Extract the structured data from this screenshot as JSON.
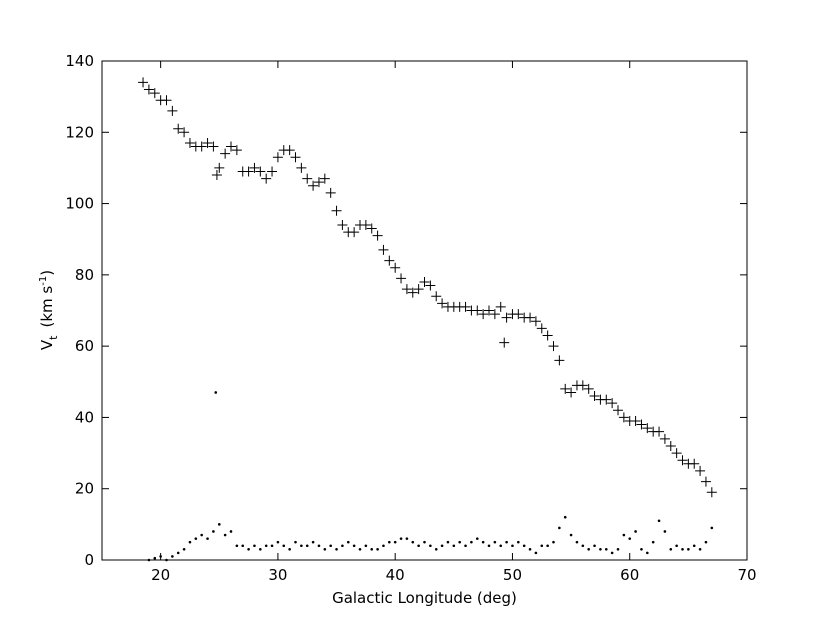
{
  "chart_data": {
    "type": "scatter",
    "xlabel": "Galactic Longitude (deg)",
    "ylabel": {
      "main": "V",
      "sub": "t",
      "unit": "(km s",
      "sup": "-1",
      "close": ")"
    },
    "xlim": [
      15,
      70
    ],
    "xticks": [
      20,
      30,
      40,
      50,
      60,
      70
    ],
    "ylim": [
      0,
      140
    ],
    "yticks": [
      0,
      20,
      40,
      60,
      80,
      100,
      120,
      140
    ],
    "series": [
      {
        "marker": "plus",
        "color": "#000000",
        "x": [
          18.5,
          19,
          19.5,
          20,
          20.5,
          21,
          21.5,
          22,
          22.5,
          23,
          23.5,
          24,
          24.5,
          25,
          25.5,
          26,
          26.5,
          27,
          27.5,
          28,
          28.5,
          29,
          29.5,
          30,
          30.5,
          31,
          31.5,
          32,
          32.5,
          33,
          33.5,
          34,
          34.5,
          35,
          35.5,
          36,
          36.5,
          37,
          37.5,
          38,
          38.5,
          39,
          39.5,
          40,
          40.5,
          41,
          41.5,
          42,
          42.5,
          43,
          43.5,
          44,
          44.5,
          45,
          45.5,
          46,
          46.5,
          47,
          47.5,
          48,
          48.5,
          49,
          49.5,
          50,
          50.5,
          51,
          51.5,
          52,
          52.5,
          53,
          53.5,
          54,
          54.5,
          55,
          55.5,
          56,
          56.5,
          57,
          57.5,
          58,
          58.5,
          59,
          59.5,
          60,
          60.5,
          61,
          61.5,
          62,
          62.5,
          63,
          63.5,
          64,
          64.5,
          65,
          65.5,
          66,
          66.5,
          67,
          49.3,
          24.8
        ],
        "values": [
          134,
          132,
          131,
          129,
          129,
          126,
          121,
          120,
          117,
          116,
          116,
          117,
          116,
          110,
          114,
          116,
          115,
          109,
          109,
          110,
          109,
          107,
          109,
          113,
          115,
          115,
          113,
          110,
          107,
          105,
          106,
          107,
          103,
          98,
          94,
          92,
          92,
          94,
          94,
          93,
          91,
          87,
          84,
          82,
          79,
          76,
          75,
          76,
          78,
          77,
          74,
          72,
          71,
          71,
          71,
          71,
          70,
          70,
          69,
          70,
          69,
          71,
          68,
          69,
          69,
          68,
          68,
          67,
          65,
          63,
          60,
          56,
          48,
          47,
          49,
          49,
          48,
          46,
          45,
          45,
          44,
          42,
          40,
          39,
          39,
          38,
          37,
          36,
          36,
          34,
          32,
          30,
          28,
          27,
          27,
          25,
          22,
          19,
          61,
          108
        ]
      },
      {
        "marker": "dot",
        "color": "#000000",
        "x": [
          19,
          19.5,
          20,
          20.5,
          21,
          21.5,
          22,
          22.5,
          23,
          23.5,
          24,
          24.5,
          25,
          25.5,
          26,
          26.5,
          27,
          27.5,
          28,
          28.5,
          29,
          29.5,
          30,
          30.5,
          31,
          31.5,
          32,
          32.5,
          33,
          33.5,
          34,
          34.5,
          35,
          35.5,
          36,
          36.5,
          37,
          37.5,
          38,
          38.5,
          39,
          39.5,
          40,
          40.5,
          41,
          41.5,
          42,
          42.5,
          43,
          43.5,
          44,
          44.5,
          45,
          45.5,
          46,
          46.5,
          47,
          47.5,
          48,
          48.5,
          49,
          49.5,
          50,
          50.5,
          51,
          51.5,
          52,
          52.5,
          53,
          53.5,
          54,
          54.5,
          55,
          55.5,
          56,
          56.5,
          57,
          57.5,
          58,
          58.5,
          59,
          59.5,
          60,
          60.5,
          61,
          61.5,
          62,
          62.5,
          63,
          63.5,
          64,
          64.5,
          65,
          65.5,
          66,
          66.5,
          67,
          24.7
        ],
        "values": [
          0,
          0.5,
          1,
          0,
          1,
          2,
          3,
          5,
          6,
          7,
          6,
          8,
          10,
          7,
          8,
          4,
          4,
          3,
          4,
          3,
          4,
          4,
          5,
          4,
          3,
          5,
          4,
          4,
          5,
          4,
          3,
          4,
          3,
          4,
          5,
          4,
          3,
          4,
          3,
          3,
          4,
          5,
          5,
          6,
          6,
          5,
          4,
          5,
          4,
          3,
          4,
          5,
          4,
          5,
          4,
          5,
          6,
          5,
          4,
          5,
          4,
          5,
          4,
          5,
          4,
          3,
          2,
          4,
          4,
          5,
          9,
          12,
          7,
          5,
          4,
          3,
          4,
          3,
          3,
          2,
          3,
          7,
          6,
          8,
          3,
          2,
          5,
          11,
          8,
          3,
          4,
          3,
          3,
          4,
          3,
          5,
          9,
          47
        ]
      }
    ]
  }
}
